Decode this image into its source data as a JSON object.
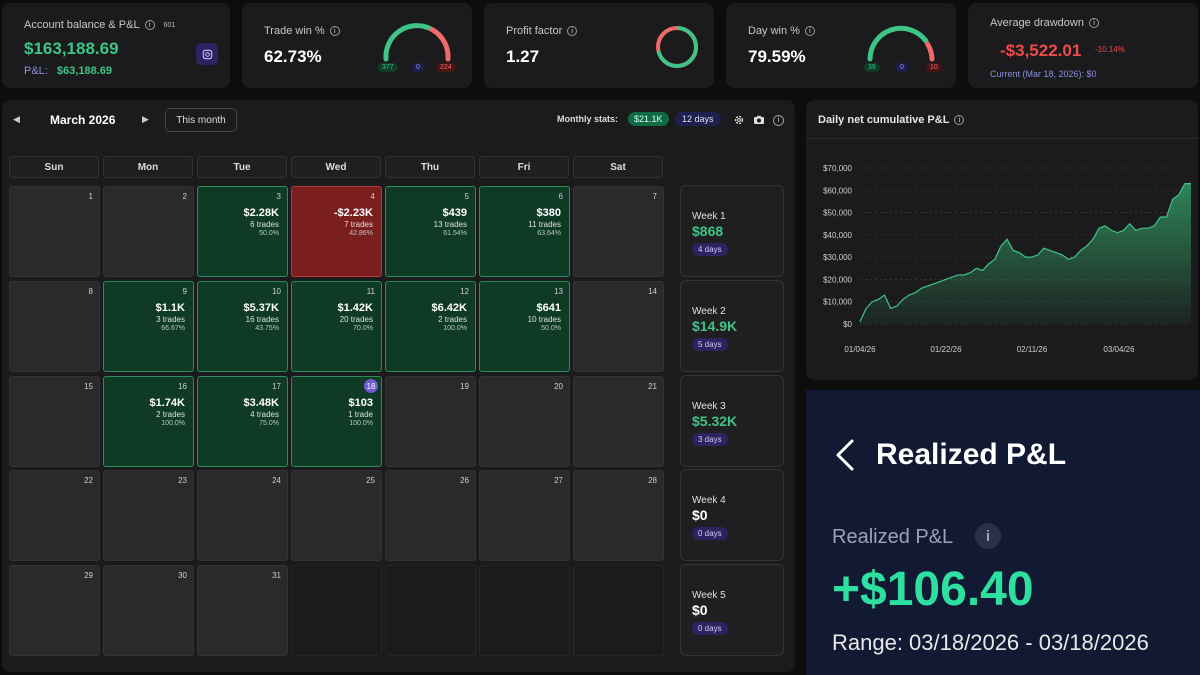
{
  "account": {
    "title": "Account balance & P&L",
    "badge": "601",
    "balance": "$163,188.69",
    "pnl_label": "P&L:",
    "pnl_value": "$63,188.69"
  },
  "trade_win": {
    "title": "Trade win %",
    "value": "62.73%",
    "wins": "377",
    "breakeven": "0",
    "losses": "224"
  },
  "profit_factor": {
    "title": "Profit factor",
    "value": "1.27"
  },
  "day_win": {
    "title": "Day win %",
    "value": "79.59%",
    "wins": "39",
    "breakeven": "0",
    "losses": "10"
  },
  "drawdown": {
    "title": "Average drawdown",
    "value": "-$3,522.01",
    "pct": "-10.14%",
    "current": "Current (Mar 18, 2026): $0"
  },
  "calendar": {
    "month": "March 2026",
    "this_month": "This month",
    "stats_label": "Monthly stats:",
    "stats_value": "$21.1K",
    "stats_days": "12 days",
    "weekdays": [
      "Sun",
      "Mon",
      "Tue",
      "Wed",
      "Thu",
      "Fri",
      "Sat"
    ],
    "days": [
      {
        "d": "1"
      },
      {
        "d": "2"
      },
      {
        "d": "3",
        "pnl": "$2.28K",
        "trades": "6 trades",
        "rate": "50.0%",
        "type": "win"
      },
      {
        "d": "4",
        "pnl": "-$2.23K",
        "trades": "7 trades",
        "rate": "42.86%",
        "type": "loss"
      },
      {
        "d": "5",
        "pnl": "$439",
        "trades": "13 trades",
        "rate": "61.54%",
        "type": "win"
      },
      {
        "d": "6",
        "pnl": "$380",
        "trades": "11 trades",
        "rate": "63.64%",
        "type": "win"
      },
      {
        "d": "7"
      },
      {
        "d": "8"
      },
      {
        "d": "9",
        "pnl": "$1.1K",
        "trades": "3 trades",
        "rate": "66.67%",
        "type": "win"
      },
      {
        "d": "10",
        "pnl": "$5.37K",
        "trades": "16 trades",
        "rate": "43.75%",
        "type": "win"
      },
      {
        "d": "11",
        "pnl": "$1.42K",
        "trades": "20 trades",
        "rate": "70.0%",
        "type": "win"
      },
      {
        "d": "12",
        "pnl": "$6.42K",
        "trades": "2 trades",
        "rate": "100.0%",
        "type": "win"
      },
      {
        "d": "13",
        "pnl": "$641",
        "trades": "10 trades",
        "rate": "50.0%",
        "type": "win"
      },
      {
        "d": "14"
      },
      {
        "d": "15"
      },
      {
        "d": "16",
        "pnl": "$1.74K",
        "trades": "2 trades",
        "rate": "100.0%",
        "type": "win"
      },
      {
        "d": "17",
        "pnl": "$3.48K",
        "trades": "4 trades",
        "rate": "75.0%",
        "type": "win"
      },
      {
        "d": "18",
        "pnl": "$103",
        "trades": "1 trade",
        "rate": "100.0%",
        "type": "win",
        "today": true
      },
      {
        "d": "19"
      },
      {
        "d": "20"
      },
      {
        "d": "21"
      },
      {
        "d": "22"
      },
      {
        "d": "23"
      },
      {
        "d": "24"
      },
      {
        "d": "25"
      },
      {
        "d": "26"
      },
      {
        "d": "27"
      },
      {
        "d": "28"
      },
      {
        "d": "29"
      },
      {
        "d": "30"
      },
      {
        "d": "31"
      },
      {
        "d": "",
        "type": "empty"
      },
      {
        "d": "",
        "type": "empty"
      },
      {
        "d": "",
        "type": "empty"
      },
      {
        "d": "",
        "type": "empty"
      }
    ],
    "weeks": [
      {
        "label": "Week 1",
        "value": "$868",
        "days": "4 days",
        "positive": true
      },
      {
        "label": "Week 2",
        "value": "$14.9K",
        "days": "5 days",
        "positive": true
      },
      {
        "label": "Week 3",
        "value": "$5.32K",
        "days": "3 days",
        "positive": true
      },
      {
        "label": "Week 4",
        "value": "$0",
        "days": "0 days",
        "positive": false
      },
      {
        "label": "Week 5",
        "value": "$0",
        "days": "0 days",
        "positive": false
      }
    ]
  },
  "chart_data": {
    "type": "area",
    "title": "Daily net cumulative P&L",
    "x_ticks": [
      "01/04/26",
      "01/22/26",
      "02/11/26",
      "03/04/26"
    ],
    "y_ticks": [
      "$0",
      "$10,000",
      "$20,000",
      "$30,000",
      "$40,000",
      "$50,000",
      "$60,000",
      "$70,000"
    ],
    "ylim": [
      0,
      70000
    ],
    "x": [
      0,
      1,
      2,
      3,
      4,
      5,
      6,
      7,
      8,
      9,
      10,
      11,
      12,
      13,
      14,
      15,
      16,
      17,
      18,
      19,
      20,
      21,
      22,
      23,
      24,
      25,
      26,
      27,
      28,
      29,
      30,
      31,
      32,
      33,
      34,
      35,
      36,
      37,
      38,
      39,
      40,
      41,
      42,
      43,
      44,
      45,
      46,
      47,
      48,
      49,
      50,
      51,
      52,
      53,
      54
    ],
    "values": [
      1000,
      7000,
      10000,
      11000,
      13000,
      7000,
      8000,
      11000,
      13000,
      14000,
      16000,
      17000,
      18000,
      19000,
      20000,
      21000,
      22000,
      22000,
      23000,
      25000,
      24000,
      27000,
      29000,
      35000,
      38000,
      33000,
      32000,
      30000,
      30000,
      31000,
      34000,
      33000,
      32000,
      31000,
      29000,
      30000,
      33000,
      35000,
      38000,
      43000,
      44000,
      42000,
      41000,
      42000,
      45000,
      42000,
      43000,
      43000,
      44000,
      48000,
      48000,
      56000,
      58000,
      63000,
      63000
    ],
    "colors": {
      "line": "#3ec486",
      "fill": "#2f8a5a"
    }
  },
  "realized": {
    "title": "Realized P&L",
    "label": "Realized P&L",
    "value": "+$106.40",
    "range": "Range: 03/18/2026 - 03/18/2026"
  }
}
